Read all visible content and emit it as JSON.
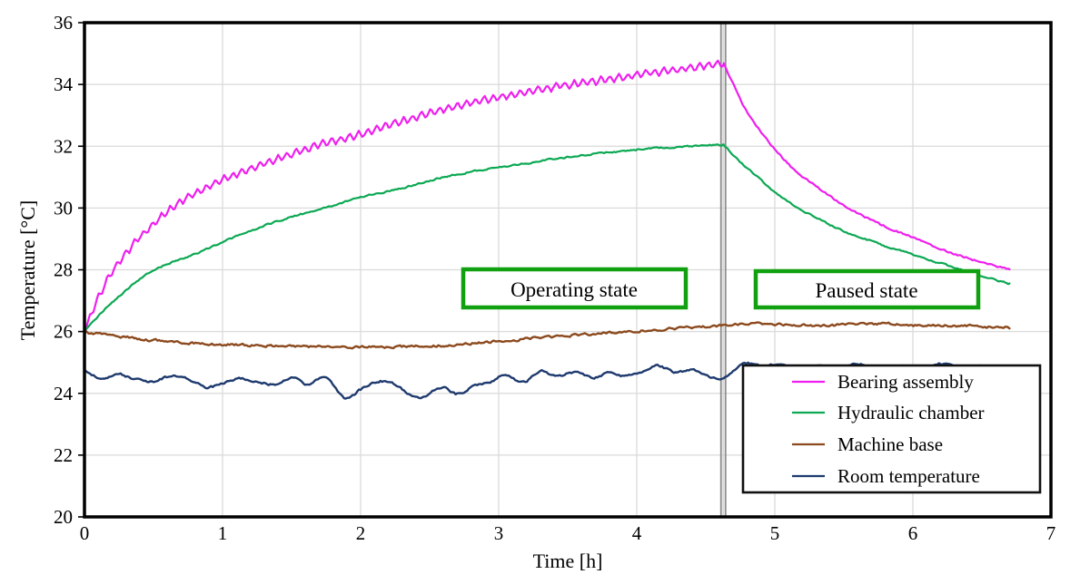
{
  "figure": {
    "kind": "line-chart",
    "background": "#ffffff"
  },
  "chart_data": {
    "type": "line",
    "title": "",
    "xlabel": "Time [h]",
    "ylabel": "Temperature [°C]",
    "xlim": [
      0,
      7
    ],
    "ylim": [
      20,
      36
    ],
    "xticks": [
      0,
      1,
      2,
      3,
      4,
      5,
      6,
      7
    ],
    "yticks": [
      20,
      22,
      24,
      26,
      28,
      30,
      32,
      34,
      36
    ],
    "grid": true,
    "grid_color": "#dadada",
    "border_color": "#000000",
    "divider_x": 4.63,
    "divider_color": "#8f8f8f",
    "legend_position": "lower-right-inside",
    "series": [
      {
        "name": "Bearing assembly",
        "color": "#ee1fee",
        "width": 2.2,
        "noise": 0.025,
        "osc": {
          "amp": 0.12,
          "period": 0.065,
          "until": 4.63
        },
        "segments": [
          [
            [
              0,
              26.0
            ],
            [
              0.04,
              26.45
            ],
            [
              0.08,
              26.9
            ],
            [
              0.14,
              27.45
            ],
            [
              0.2,
              27.95
            ],
            [
              0.3,
              28.55
            ],
            [
              0.4,
              29.05
            ],
            [
              0.5,
              29.5
            ],
            [
              0.62,
              29.95
            ],
            [
              0.75,
              30.35
            ],
            [
              0.9,
              30.7
            ],
            [
              1.05,
              31.0
            ],
            [
              1.25,
              31.35
            ],
            [
              1.5,
              31.75
            ],
            [
              1.75,
              32.1
            ],
            [
              2.0,
              32.4
            ],
            [
              2.3,
              32.8
            ],
            [
              2.6,
              33.2
            ],
            [
              2.9,
              33.5
            ],
            [
              3.2,
              33.75
            ],
            [
              3.5,
              33.98
            ],
            [
              3.8,
              34.18
            ],
            [
              4.1,
              34.38
            ],
            [
              4.4,
              34.55
            ],
            [
              4.63,
              34.7
            ]
          ],
          [
            [
              4.63,
              34.7
            ],
            [
              4.7,
              34.0
            ],
            [
              4.78,
              33.25
            ],
            [
              4.88,
              32.6
            ],
            [
              5.0,
              31.9
            ],
            [
              5.15,
              31.2
            ],
            [
              5.3,
              30.7
            ],
            [
              5.5,
              30.1
            ],
            [
              5.75,
              29.5
            ],
            [
              6.0,
              29.05
            ],
            [
              6.25,
              28.6
            ],
            [
              6.5,
              28.25
            ],
            [
              6.7,
              28.0
            ]
          ]
        ]
      },
      {
        "name": "Hydraulic chamber",
        "color": "#0ca853",
        "width": 2.2,
        "noise": 0.022,
        "segments": [
          [
            [
              0,
              26.0
            ],
            [
              0.1,
              26.5
            ],
            [
              0.2,
              26.95
            ],
            [
              0.32,
              27.4
            ],
            [
              0.45,
              27.85
            ],
            [
              0.58,
              28.15
            ],
            [
              0.7,
              28.35
            ],
            [
              0.85,
              28.6
            ],
            [
              1.0,
              28.9
            ],
            [
              1.2,
              29.25
            ],
            [
              1.45,
              29.65
            ],
            [
              1.7,
              29.95
            ],
            [
              2.0,
              30.35
            ],
            [
              2.3,
              30.65
            ],
            [
              2.6,
              31.0
            ],
            [
              2.9,
              31.25
            ],
            [
              3.2,
              31.45
            ],
            [
              3.5,
              31.65
            ],
            [
              3.8,
              31.8
            ],
            [
              4.1,
              31.92
            ],
            [
              4.4,
              32.0
            ],
            [
              4.63,
              32.05
            ]
          ],
          [
            [
              4.63,
              32.05
            ],
            [
              4.75,
              31.5
            ],
            [
              4.88,
              31.0
            ],
            [
              5.0,
              30.5
            ],
            [
              5.15,
              30.05
            ],
            [
              5.3,
              29.7
            ],
            [
              5.5,
              29.25
            ],
            [
              5.75,
              28.85
            ],
            [
              6.0,
              28.5
            ],
            [
              6.25,
              28.15
            ],
            [
              6.5,
              27.8
            ],
            [
              6.7,
              27.55
            ]
          ]
        ]
      },
      {
        "name": "Machine base",
        "color": "#8c4a1e",
        "width": 2.4,
        "noise": 0.035,
        "segments": [
          [
            [
              0,
              26.0
            ],
            [
              0.3,
              25.82
            ],
            [
              0.6,
              25.68
            ],
            [
              0.9,
              25.6
            ],
            [
              1.2,
              25.55
            ],
            [
              1.6,
              25.52
            ],
            [
              2.0,
              25.5
            ],
            [
              2.4,
              25.52
            ],
            [
              2.7,
              25.58
            ],
            [
              3.0,
              25.68
            ],
            [
              3.3,
              25.8
            ],
            [
              3.6,
              25.9
            ],
            [
              3.9,
              26.0
            ],
            [
              4.2,
              26.08
            ],
            [
              4.5,
              26.16
            ],
            [
              4.7,
              26.22
            ],
            [
              4.9,
              26.25
            ],
            [
              5.2,
              26.2
            ],
            [
              5.5,
              26.22
            ],
            [
              5.8,
              26.25
            ],
            [
              6.1,
              26.2
            ],
            [
              6.4,
              26.18
            ],
            [
              6.7,
              26.12
            ]
          ]
        ]
      },
      {
        "name": "Room temperature",
        "color": "#1e3a6e",
        "width": 2.4,
        "noise": 0.03,
        "segments": [
          [
            [
              0,
              24.72
            ],
            [
              0.12,
              24.5
            ],
            [
              0.25,
              24.62
            ],
            [
              0.38,
              24.45
            ],
            [
              0.5,
              24.38
            ],
            [
              0.62,
              24.55
            ],
            [
              0.75,
              24.48
            ],
            [
              0.88,
              24.2
            ],
            [
              1.0,
              24.32
            ],
            [
              1.12,
              24.48
            ],
            [
              1.25,
              24.38
            ],
            [
              1.38,
              24.28
            ],
            [
              1.5,
              24.5
            ],
            [
              1.62,
              24.28
            ],
            [
              1.75,
              24.52
            ],
            [
              1.88,
              23.85
            ],
            [
              2.0,
              24.12
            ],
            [
              2.12,
              24.38
            ],
            [
              2.25,
              24.3
            ],
            [
              2.35,
              23.95
            ],
            [
              2.45,
              23.88
            ],
            [
              2.58,
              24.2
            ],
            [
              2.7,
              23.98
            ],
            [
              2.82,
              24.22
            ],
            [
              2.95,
              24.4
            ],
            [
              3.05,
              24.58
            ],
            [
              3.18,
              24.35
            ],
            [
              3.3,
              24.72
            ],
            [
              3.42,
              24.55
            ],
            [
              3.55,
              24.68
            ],
            [
              3.68,
              24.5
            ],
            [
              3.8,
              24.66
            ],
            [
              3.92,
              24.55
            ],
            [
              4.05,
              24.72
            ],
            [
              4.15,
              24.9
            ],
            [
              4.28,
              24.68
            ],
            [
              4.4,
              24.78
            ],
            [
              4.5,
              24.6
            ],
            [
              4.63,
              24.48
            ],
            [
              4.78,
              24.95
            ],
            [
              4.9,
              24.88
            ],
            [
              5.02,
              24.95
            ],
            [
              5.15,
              24.8
            ],
            [
              5.3,
              24.9
            ],
            [
              5.45,
              24.78
            ],
            [
              5.6,
              24.95
            ],
            [
              5.75,
              24.8
            ],
            [
              5.9,
              24.9
            ],
            [
              6.05,
              24.78
            ],
            [
              6.2,
              24.95
            ],
            [
              6.35,
              24.82
            ],
            [
              6.5,
              24.9
            ],
            [
              6.65,
              24.82
            ],
            [
              6.7,
              24.85
            ]
          ]
        ]
      }
    ],
    "annotations": [
      {
        "label": "Operating state",
        "border_color": "#10a010"
      },
      {
        "label": "Paused state",
        "border_color": "#10a010"
      }
    ]
  }
}
